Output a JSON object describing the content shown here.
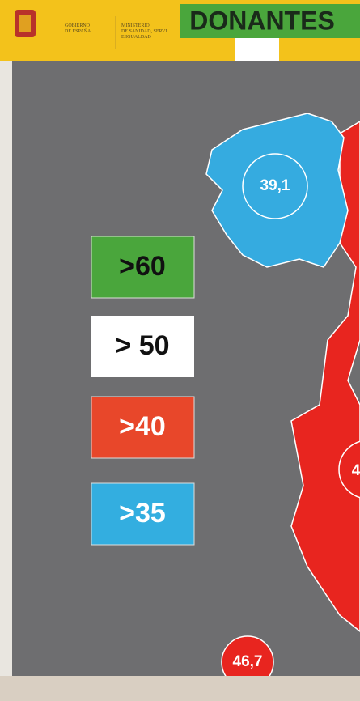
{
  "header": {
    "government": [
      "GOBIERNO",
      "DE ESPAÑA"
    ],
    "ministry": [
      "MINISTERIO",
      "DE SANIDAD, SERVI",
      "E IGUALDAD"
    ],
    "title": "DONANTES"
  },
  "legend": [
    ">60",
    "> 50",
    ">40",
    ">35"
  ],
  "map_labels": [
    "39,1",
    "4",
    "46,7"
  ]
}
